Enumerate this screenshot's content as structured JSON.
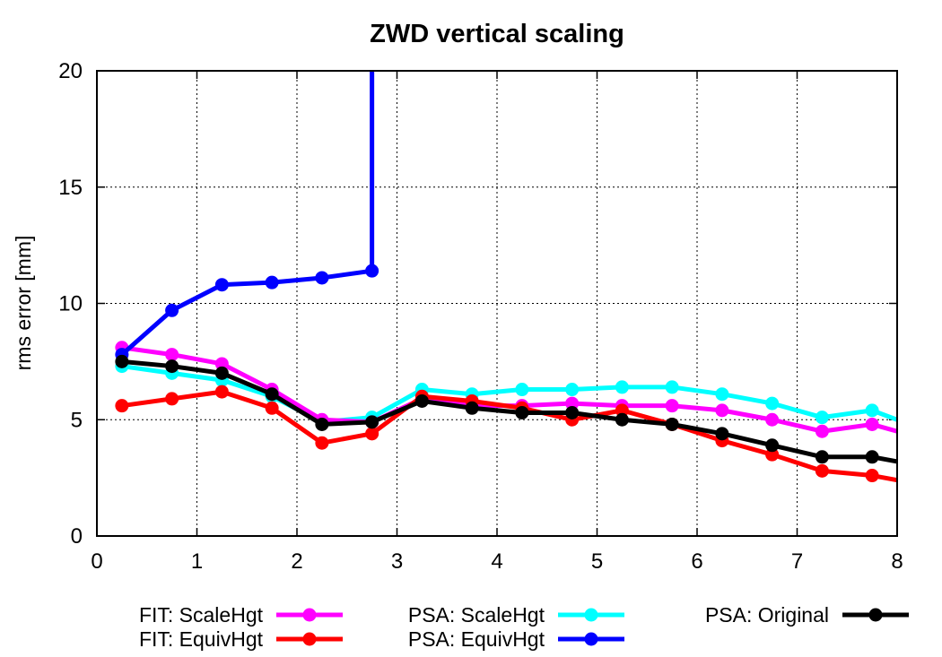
{
  "chart_data": {
    "type": "line",
    "title": "ZWD vertical scaling",
    "xlabel": "",
    "ylabel": "rms error [mm]",
    "xlim": [
      0,
      8
    ],
    "ylim": [
      0,
      20
    ],
    "xticks": [
      "0",
      "1",
      "2",
      "3",
      "4",
      "5",
      "6",
      "7",
      "8"
    ],
    "yticks": [
      "0",
      "5",
      "10",
      "15",
      "20"
    ],
    "grid": true,
    "legend_position": "bottom",
    "series": [
      {
        "name": "FIT: ScaleHgt",
        "color": "#ff00ff",
        "x": [
          0.25,
          0.75,
          1.25,
          1.75,
          2.25,
          2.75,
          3.25,
          3.75,
          4.25,
          4.75,
          5.25,
          5.75,
          6.25,
          6.75,
          7.25,
          7.75,
          8.0
        ],
        "y": [
          8.1,
          7.8,
          7.4,
          6.3,
          5.0,
          4.9,
          5.9,
          5.6,
          5.6,
          5.7,
          5.6,
          5.6,
          5.4,
          5.0,
          4.5,
          4.8,
          4.5
        ]
      },
      {
        "name": "FIT: EquivHgt",
        "color": "#ff0000",
        "x": [
          0.25,
          0.75,
          1.25,
          1.75,
          2.25,
          2.75,
          3.25,
          3.75,
          4.25,
          4.75,
          5.25,
          5.75,
          6.25,
          6.75,
          7.25,
          7.75,
          8.0
        ],
        "y": [
          5.6,
          5.9,
          6.2,
          5.5,
          4.0,
          4.4,
          6.0,
          5.8,
          5.5,
          5.0,
          5.4,
          4.8,
          4.1,
          3.5,
          2.8,
          2.6,
          2.4
        ]
      },
      {
        "name": "PSA: ScaleHgt",
        "color": "#00ffff",
        "x": [
          0.25,
          0.75,
          1.25,
          1.75,
          2.25,
          2.75,
          3.25,
          3.75,
          4.25,
          4.75,
          5.25,
          5.75,
          6.25,
          6.75,
          7.25,
          7.75,
          8.0
        ],
        "y": [
          7.3,
          7.0,
          6.7,
          6.0,
          4.9,
          5.1,
          6.3,
          6.1,
          6.3,
          6.3,
          6.4,
          6.4,
          6.1,
          5.7,
          5.1,
          5.4,
          5.0
        ]
      },
      {
        "name": "PSA: EquivHgt",
        "color": "#0000ff",
        "x": [
          0.25,
          0.75,
          1.25,
          1.75,
          2.25,
          2.75,
          2.75
        ],
        "y": [
          7.8,
          9.7,
          10.8,
          10.9,
          11.1,
          11.4,
          20.0
        ],
        "markers_count": 6
      },
      {
        "name": "PSA: Original",
        "color": "#000000",
        "x": [
          0.25,
          0.75,
          1.25,
          1.75,
          2.25,
          2.75,
          3.25,
          3.75,
          4.25,
          4.75,
          5.25,
          5.75,
          6.25,
          6.75,
          7.25,
          7.75,
          8.0
        ],
        "y": [
          7.5,
          7.3,
          7.0,
          6.1,
          4.8,
          4.9,
          5.8,
          5.5,
          5.3,
          5.3,
          5.0,
          4.8,
          4.4,
          3.9,
          3.4,
          3.4,
          3.2
        ]
      }
    ]
  }
}
